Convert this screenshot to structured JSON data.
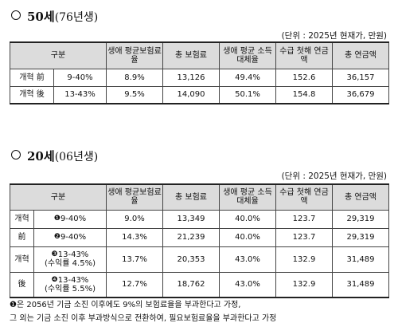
{
  "section1": {
    "title_main": "50세",
    "title_sub": "(76년생)",
    "unit": "(단위 : 2025년 현재가, 만원)",
    "headers": [
      "구분",
      "생애 평균보험료율",
      "총 보험료",
      "생애 평균 소득대체율",
      "수급 첫해 연금액",
      "총 연금액"
    ],
    "rows": [
      {
        "label": "개혁 前",
        "rate_range": "9-40%",
        "avg_premium_rate": "8.9%",
        "total_premium": "13,126",
        "replacement_rate": "49.4%",
        "first_year_pension": "152.6",
        "total_pension": "36,157"
      },
      {
        "label": "개혁 後",
        "rate_range": "13-43%",
        "avg_premium_rate": "9.5%",
        "total_premium": "14,090",
        "replacement_rate": "50.1%",
        "first_year_pension": "154.8",
        "total_pension": "36,679"
      }
    ]
  },
  "section2": {
    "title_main": "20세",
    "title_sub": "(06년생)",
    "unit": "(단위 : 2025년 현재가, 만원)",
    "headers": [
      "구분",
      "생애 평균보험료율",
      "총 보험료",
      "생애 평균 소득대체율",
      "수급 첫해 연금액",
      "총 연금액"
    ],
    "groups": [
      {
        "label_top": "개혁",
        "label_bottom": "前"
      },
      {
        "label_top": "개혁",
        "label_bottom": "後"
      }
    ],
    "rows": [
      {
        "mark": "❶",
        "rate_range": "9-40%",
        "note": "",
        "avg_premium_rate": "9.0%",
        "total_premium": "13,349",
        "replacement_rate": "40.0%",
        "first_year_pension": "123.7",
        "total_pension": "29,319"
      },
      {
        "mark": "❷",
        "rate_range": "9-40%",
        "note": "",
        "avg_premium_rate": "14.3%",
        "total_premium": "21,239",
        "replacement_rate": "40.0%",
        "first_year_pension": "123.7",
        "total_pension": "29,319"
      },
      {
        "mark": "❸",
        "rate_range": "13-43%",
        "note": "(수익률 4.5%)",
        "avg_premium_rate": "13.7%",
        "total_premium": "20,353",
        "replacement_rate": "43.0%",
        "first_year_pension": "132.9",
        "total_pension": "31,489"
      },
      {
        "mark": "❹",
        "rate_range": "13-43%",
        "note": "(수익률 5.5%)",
        "avg_premium_rate": "12.7%",
        "total_premium": "18,762",
        "replacement_rate": "43.0%",
        "first_year_pension": "132.9",
        "total_pension": "31,489"
      }
    ]
  },
  "notes": [
    "❶은 2056년 기금 소진 이후에도 9%의 보험료율을 부과한다고 가정,",
    "그 외는 기금 소진 이후 부과방식으로 전환하여, 필요보험료율을 부과한다고 가정"
  ]
}
